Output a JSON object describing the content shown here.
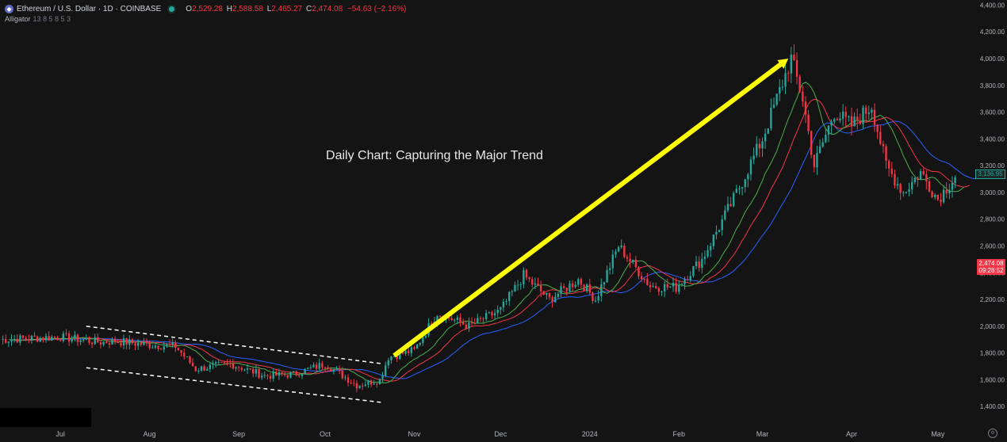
{
  "symbol": {
    "name": "Ethereum / U.S. Dollar · 1D · COINBASE",
    "logo_icon": "ethereum-logo",
    "status_color": "#26a69a"
  },
  "ohlc": {
    "o_label": "O",
    "o": "2,529.28",
    "h_label": "H",
    "h": "2,588.58",
    "l_label": "L",
    "l": "2,465.27",
    "c_label": "C",
    "c": "2,474.08",
    "change": "−54.63 (−2.16%)",
    "color": "#f23645"
  },
  "indicator": {
    "name": "Alligator",
    "params": "13 8 5 8 5 3"
  },
  "price_tags": {
    "current_price": "2,474.08",
    "countdown": "09:28:52",
    "secondary": "3,136.95"
  },
  "colors": {
    "background": "#141414",
    "up": "#26a69a",
    "down": "#f23645",
    "jaw": "#2962ff",
    "teeth": "#f23645",
    "lips": "#4caf50",
    "arrow": "#ffff00"
  },
  "chart_data": {
    "type": "candlestick",
    "title": "Daily Chart: Capturing the Major Trend",
    "y_axis": {
      "ticks": [
        1400,
        1600,
        1800,
        2000,
        2200,
        2400,
        2600,
        2800,
        3000,
        3200,
        3400,
        3600,
        3800,
        4000,
        4200,
        4400
      ],
      "tick_labels": [
        "1,400.00",
        "1,600.00",
        "1,800.00",
        "2,000.00",
        "2,200.00",
        "2,400.00",
        "2,600.00",
        "2,800.00",
        "3,000.00",
        "3,200.00",
        "3,400.00",
        "3,600.00",
        "3,800.00",
        "4,000.00",
        "4,200.00",
        "4,400.00"
      ],
      "range": [
        1360,
        4420
      ]
    },
    "x_axis": {
      "tick_labels": [
        "Jul",
        "Aug",
        "Sep",
        "Oct",
        "Nov",
        "Dec",
        "2024",
        "Feb",
        "Mar",
        "Apr",
        "May"
      ],
      "tick_dates": [
        "2023-07-01",
        "2023-08-01",
        "2023-09-01",
        "2023-10-01",
        "2023-11-01",
        "2023-12-01",
        "2024-01-01",
        "2024-02-01",
        "2024-03-01",
        "2024-04-01",
        "2024-05-01"
      ],
      "range": [
        "2023-06-10",
        "2024-05-14"
      ]
    },
    "grid": false,
    "trend_path": [
      [
        "2023-06-10",
        1900
      ],
      [
        "2023-07-01",
        1920
      ],
      [
        "2023-07-15",
        1880
      ],
      [
        "2023-07-20",
        1890
      ],
      [
        "2023-08-01",
        1860
      ],
      [
        "2023-08-10",
        1850
      ],
      [
        "2023-08-17",
        1680
      ],
      [
        "2023-08-29",
        1720
      ],
      [
        "2023-09-10",
        1630
      ],
      [
        "2023-09-20",
        1640
      ],
      [
        "2023-10-01",
        1720
      ],
      [
        "2023-10-12",
        1560
      ],
      [
        "2023-10-20",
        1600
      ],
      [
        "2023-10-23",
        1770
      ],
      [
        "2023-11-01",
        1820
      ],
      [
        "2023-11-09",
        2100
      ],
      [
        "2023-11-20",
        2000
      ],
      [
        "2023-12-01",
        2120
      ],
      [
        "2023-12-09",
        2380
      ],
      [
        "2023-12-18",
        2200
      ],
      [
        "2023-12-28",
        2350
      ],
      [
        "2024-01-03",
        2200
      ],
      [
        "2024-01-11",
        2600
      ],
      [
        "2024-01-22",
        2300
      ],
      [
        "2024-01-31",
        2290
      ],
      [
        "2024-02-09",
        2500
      ],
      [
        "2024-02-20",
        2950
      ],
      [
        "2024-03-01",
        3400
      ],
      [
        "2024-03-11",
        4000
      ],
      [
        "2024-03-15",
        3700
      ],
      [
        "2024-03-19",
        3200
      ],
      [
        "2024-03-26",
        3600
      ],
      [
        "2024-04-01",
        3500
      ],
      [
        "2024-04-08",
        3650
      ],
      [
        "2024-04-13",
        3200
      ],
      [
        "2024-04-19",
        3000
      ],
      [
        "2024-04-25",
        3150
      ],
      [
        "2024-05-01",
        2950
      ],
      [
        "2024-05-07",
        3120
      ]
    ],
    "annotations": {
      "trend_arrow": {
        "from": [
          "2023-10-25",
          1780
        ],
        "to": [
          "2024-03-10",
          4000
        ]
      },
      "channel_upper": {
        "from": [
          "2023-07-10",
          2000
        ],
        "to": [
          "2023-10-21",
          1720
        ]
      },
      "channel_lower": {
        "from": [
          "2023-07-10",
          1690
        ],
        "to": [
          "2023-10-21",
          1430
        ]
      }
    }
  }
}
